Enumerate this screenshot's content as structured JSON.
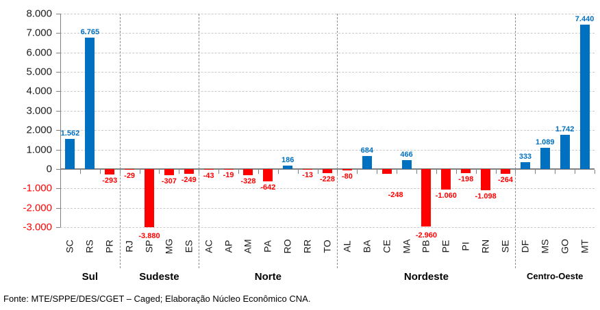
{
  "chart_data": {
    "type": "bar",
    "grid": true,
    "ylim": [
      -3000,
      8000
    ],
    "ytick_step": 1000,
    "yticks": [
      8000,
      7000,
      6000,
      5000,
      4000,
      3000,
      2000,
      1000,
      0,
      -1000,
      -2000,
      -3000
    ],
    "number_format": "thousands separated by '.' (pt-BR)",
    "colors": {
      "positive_bar": "#0070C0",
      "negative_bar": "#FF0000",
      "positive_value_label": "#0070C0",
      "negative_value_label": "#FF0000",
      "axis_tick_label": "#1A1A1A",
      "axis_tick_label_negative": "#FF0000",
      "axis_line": "#7F7F7F",
      "gridline": "#C9C9C9"
    },
    "groups": [
      {
        "region": "Sul",
        "states": [
          {
            "code": "SC",
            "value": 1562
          },
          {
            "code": "RS",
            "value": 6765
          },
          {
            "code": "PR",
            "value": -293
          }
        ]
      },
      {
        "region": "Sudeste",
        "states": [
          {
            "code": "RJ",
            "value": -29
          },
          {
            "code": "SP",
            "value": -3880
          },
          {
            "code": "MG",
            "value": -307
          },
          {
            "code": "ES",
            "value": -249
          }
        ]
      },
      {
        "region": "Norte",
        "states": [
          {
            "code": "AC",
            "value": -43
          },
          {
            "code": "AP",
            "value": -19
          },
          {
            "code": "AM",
            "value": -328
          },
          {
            "code": "PA",
            "value": -642
          },
          {
            "code": "RO",
            "value": 186
          },
          {
            "code": "RR",
            "value": -13
          },
          {
            "code": "TO",
            "value": -228
          }
        ]
      },
      {
        "region": "Nordeste",
        "states": [
          {
            "code": "AL",
            "value": -80
          },
          {
            "code": "BA",
            "value": 684
          },
          {
            "code": "CE",
            "value": -248
          },
          {
            "code": "MA",
            "value": 466
          },
          {
            "code": "PB",
            "value": -2960
          },
          {
            "code": "PE",
            "value": -1060
          },
          {
            "code": "PI",
            "value": -198
          },
          {
            "code": "RN",
            "value": -1098
          },
          {
            "code": "SE",
            "value": -264
          }
        ]
      },
      {
        "region": "Centro-Oeste",
        "states": [
          {
            "code": "DF",
            "value": 333
          },
          {
            "code": "MS",
            "value": 1089
          },
          {
            "code": "GO",
            "value": 1742
          },
          {
            "code": "MT",
            "value": 7440
          }
        ]
      }
    ],
    "footer": "Fonte: MTE/SPPE/DES/CGET – Caged; Elaboração Núcleo Econômico CNA."
  }
}
